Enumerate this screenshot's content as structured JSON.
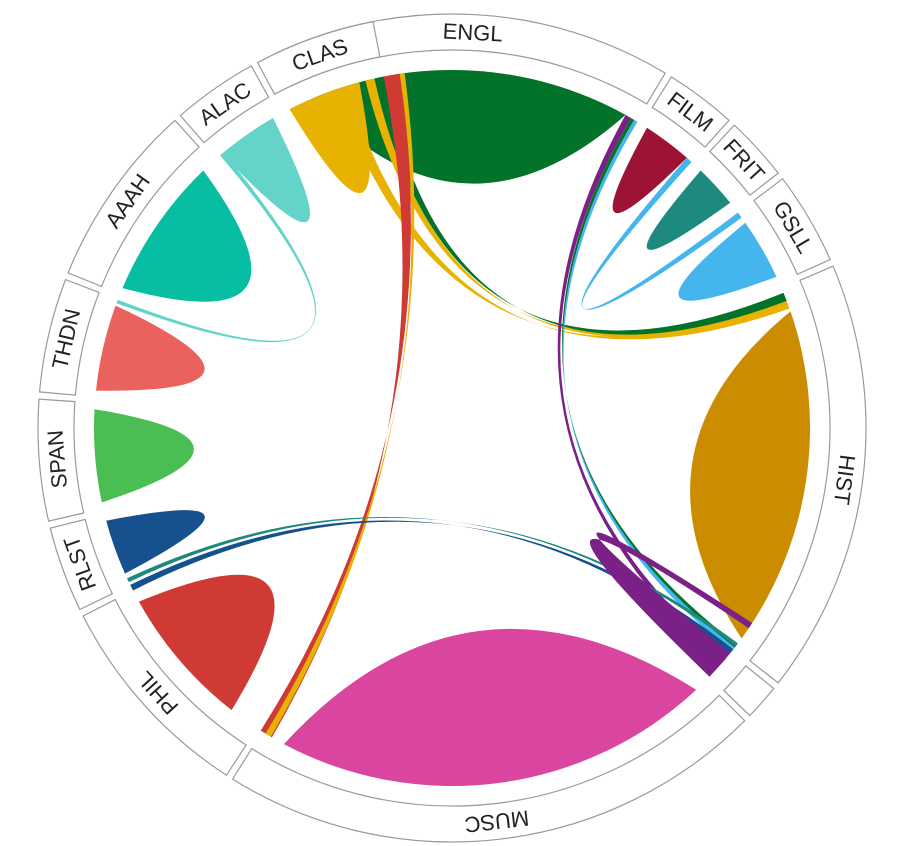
{
  "segments": [
    {
      "id": "ENGL",
      "label": "ENGL",
      "color": "#037329"
    },
    {
      "id": "FILM",
      "label": "FILM",
      "color": "#9C1336"
    },
    {
      "id": "FRIT",
      "label": "FRIT",
      "color": "#1E8A7F"
    },
    {
      "id": "GSLL",
      "label": "GSLL",
      "color": "#45B5EE"
    },
    {
      "id": "HIST",
      "label": "HIST",
      "color": "#CC8C00"
    },
    {
      "id": "GAP",
      "label": "",
      "color": "#7A2087"
    },
    {
      "id": "MUSC",
      "label": "MUSC",
      "color": "#DA45A0"
    },
    {
      "id": "PHIL",
      "label": "PHIL",
      "color": "#D03A35"
    },
    {
      "id": "RLST",
      "label": "RLST",
      "color": "#17508F"
    },
    {
      "id": "SPAN",
      "label": "SPAN",
      "color": "#4BBE53"
    },
    {
      "id": "THDN",
      "label": "THDN",
      "color": "#E9625E"
    },
    {
      "id": "AAAH",
      "label": "AAAH",
      "color": "#07BDA2"
    },
    {
      "id": "ALAC",
      "label": "ALAC",
      "color": "#64D4C9"
    },
    {
      "id": "CLAS",
      "label": "CLAS",
      "color": "#E8B203"
    }
  ]
}
